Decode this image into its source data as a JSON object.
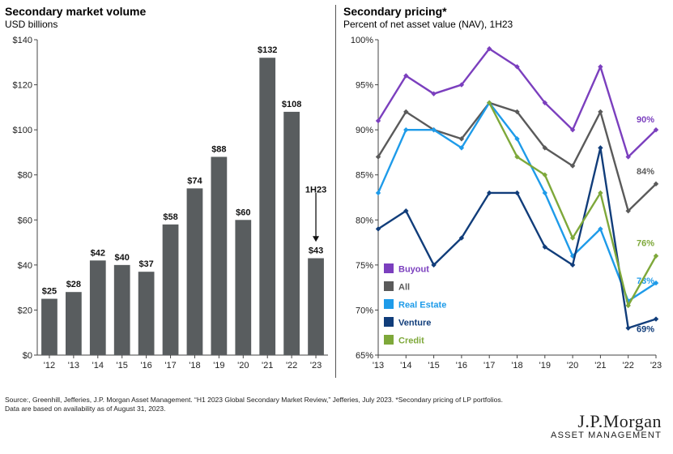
{
  "footnote_line1": "Source:, Greenhill, Jefferies, J.P. Morgan Asset Management. “H1 2023 Global Secondary Market Review,” Jefferies, July 2023.  *Secondary pricing of LP portfolios.",
  "footnote_line2": "Data are based on availability as of August 31, 2023.",
  "brand": {
    "name": "J.P.Morgan",
    "sub": "ASSET MANAGEMENT"
  },
  "chart_data": [
    {
      "type": "bar",
      "title": "Secondary market volume",
      "subtitle": "USD billions",
      "categories": [
        "'12",
        "'13",
        "'14",
        "'15",
        "'16",
        "'17",
        "'18",
        "'19",
        "'20",
        "'21",
        "'22",
        "'23"
      ],
      "values": [
        25,
        28,
        42,
        40,
        37,
        58,
        74,
        88,
        60,
        132,
        108,
        43
      ],
      "value_labels": [
        "$25",
        "$28",
        "$42",
        "$40",
        "$37",
        "$58",
        "$74",
        "$88",
        "$60",
        "$132",
        "$108",
        "$43"
      ],
      "ylim": [
        0,
        140
      ],
      "yticks": [
        0,
        20,
        40,
        60,
        80,
        100,
        120,
        140
      ],
      "ytick_labels": [
        "$0",
        "$20",
        "$40",
        "$60",
        "$80",
        "$100",
        "$120",
        "$140"
      ],
      "annotation": "1H23",
      "bar_color": "#595d5f",
      "grid": false
    },
    {
      "type": "line",
      "title": "Secondary pricing*",
      "subtitle": "Percent of net asset value (NAV), 1H23",
      "x": [
        "'13",
        "'14",
        "'15",
        "'16",
        "'17",
        "'18",
        "'19",
        "'20",
        "'21",
        "'22",
        "'23"
      ],
      "ylim": [
        65,
        100
      ],
      "yticks": [
        65,
        70,
        75,
        80,
        85,
        90,
        95,
        100
      ],
      "ytick_labels": [
        "65%",
        "70%",
        "75%",
        "80%",
        "85%",
        "90%",
        "95%",
        "100%"
      ],
      "legend_position": "bottom-left",
      "grid": false,
      "series": [
        {
          "name": "Buyout",
          "color": "#7b3fbe",
          "values": [
            91,
            96,
            94,
            95,
            99,
            97,
            93,
            90,
            97,
            87,
            90
          ],
          "end_label": "90%"
        },
        {
          "name": "All",
          "color": "#5a5a5a",
          "values": [
            87,
            92,
            90,
            89,
            93,
            92,
            88,
            86,
            92,
            81,
            84
          ],
          "end_label": "84%"
        },
        {
          "name": "Real Estate",
          "color": "#1e9be9",
          "values": [
            83,
            90,
            90,
            88,
            93,
            89,
            83,
            76,
            79,
            71,
            73
          ],
          "end_label": "73%"
        },
        {
          "name": "Venture",
          "color": "#113d7a",
          "values": [
            79,
            81,
            75,
            78,
            83,
            83,
            77,
            75,
            88,
            68,
            69
          ],
          "end_label": "69%"
        },
        {
          "name": "Credit",
          "color": "#7ea83a",
          "values": [
            null,
            null,
            null,
            null,
            93,
            87,
            85,
            78,
            83,
            70.5,
            76
          ],
          "end_label": "76%"
        }
      ]
    }
  ]
}
